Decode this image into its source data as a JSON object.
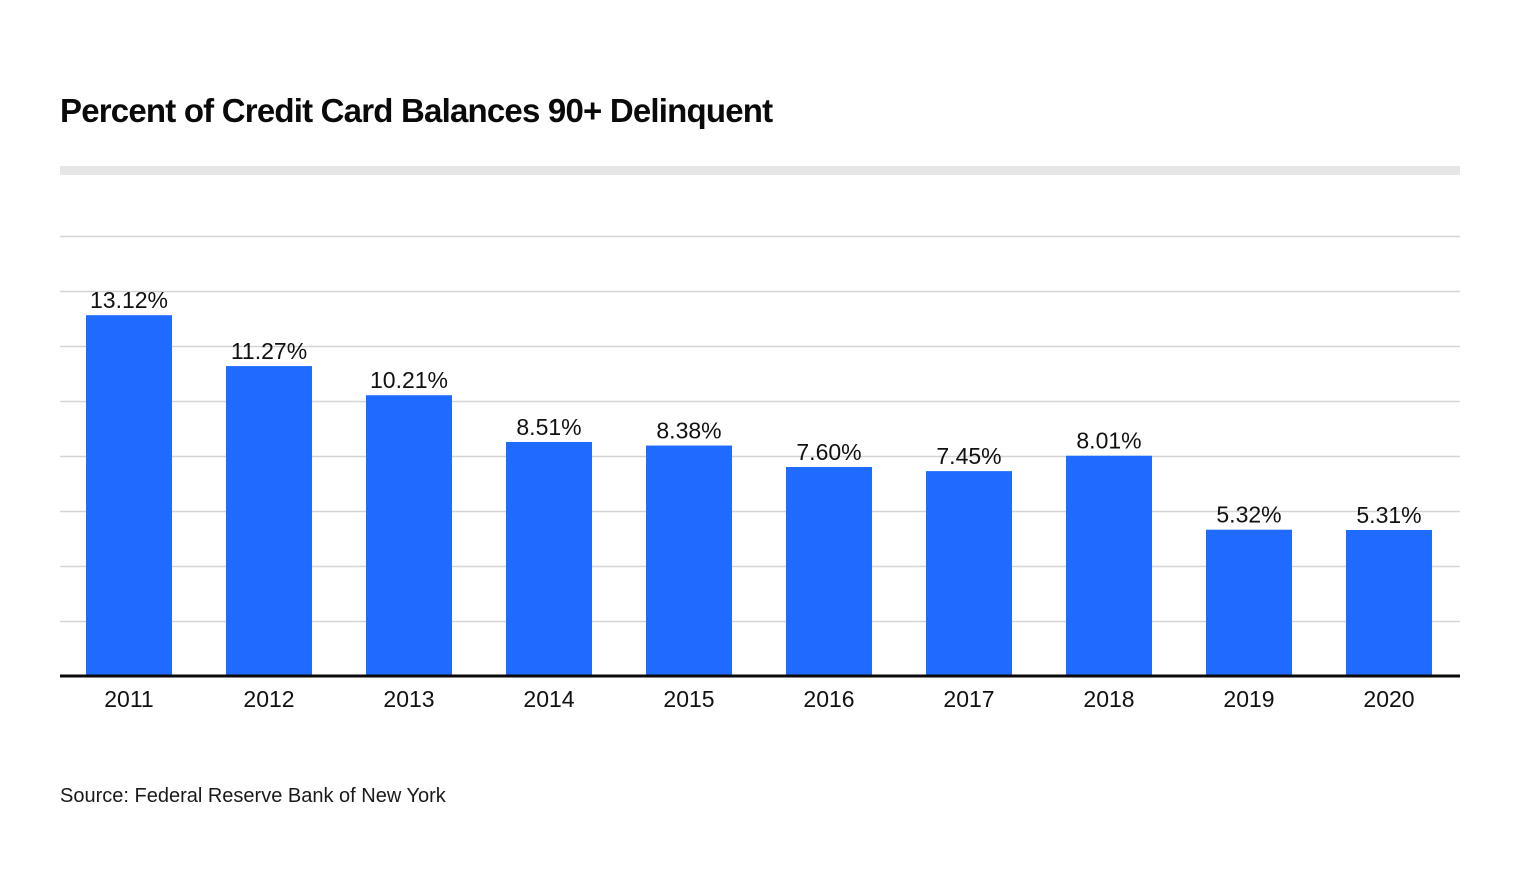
{
  "chart_data": {
    "type": "bar",
    "title": "Percent of Credit Card Balances 90+ Delinquent",
    "categories": [
      "2011",
      "2012",
      "2013",
      "2014",
      "2015",
      "2016",
      "2017",
      "2018",
      "2019",
      "2020"
    ],
    "values": [
      13.12,
      11.27,
      10.21,
      8.51,
      8.38,
      7.6,
      7.45,
      8.01,
      5.32,
      5.31
    ],
    "value_labels": [
      "13.12%",
      "11.27%",
      "10.21%",
      "8.51%",
      "8.38%",
      "7.60%",
      "7.45%",
      "8.01%",
      "5.32%",
      "5.31%"
    ],
    "xlabel": "",
    "ylabel": "",
    "ylim": [
      0,
      16
    ],
    "y_gridlines": [
      2,
      4,
      6,
      8,
      10,
      12,
      14,
      16
    ],
    "y_tick_labels_shown": false,
    "grid": true,
    "bar_color": "#1f6bff",
    "source": "Source: Federal Reserve Bank of New York"
  }
}
